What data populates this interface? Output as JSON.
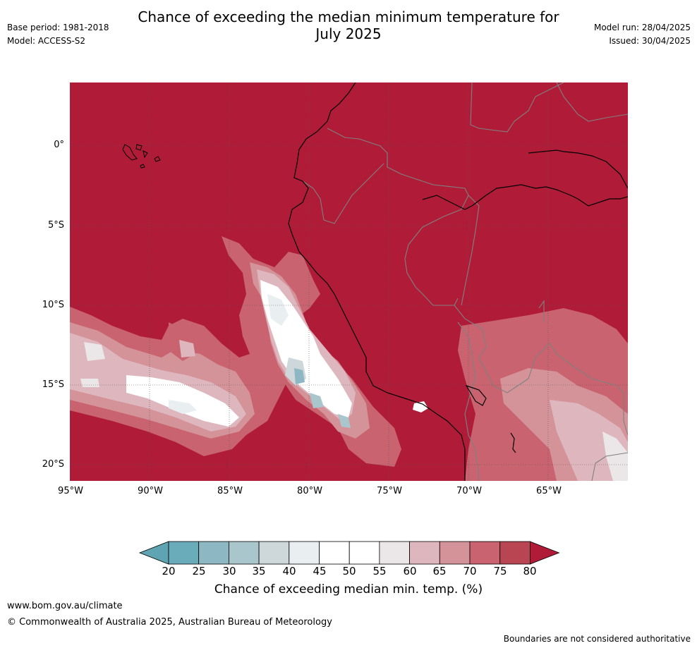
{
  "header": {
    "title_line1": "Chance of exceeding the median minimum temperature for",
    "title_line2": "July 2025",
    "base_period": "Base period: 1981-2018",
    "model": "Model: ACCESS-S2",
    "model_run": "Model run: 28/04/2025",
    "issued": "Issued: 30/04/2025"
  },
  "map": {
    "latitude_labels": [
      "0°",
      "5°S",
      "10°S",
      "15°S",
      "20°S"
    ],
    "longitude_labels": [
      "95°W",
      "90°W",
      "85°W",
      "80°W",
      "75°W",
      "70°W",
      "65°W"
    ],
    "background_category_color": "#b01c38",
    "coastline_color": "#000000",
    "border_color": "#808080"
  },
  "colorbar": {
    "tick_labels": [
      "20",
      "25",
      "30",
      "35",
      "40",
      "45",
      "50",
      "55",
      "60",
      "65",
      "70",
      "75",
      "80"
    ],
    "colors": [
      "#5ea4b3",
      "#6aacb9",
      "#8db7c2",
      "#a9c6cc",
      "#ced8db",
      "#e9eef0",
      "#ffffff",
      "#ffffff",
      "#ebe6e8",
      "#deb6bd",
      "#d49299",
      "#c8636f",
      "#b94552",
      "#b01c38"
    ],
    "title": "Chance of exceeding median min. temp. (%)"
  },
  "footer": {
    "url": "www.bom.gov.au/climate",
    "copyright": "© Commonwealth of Australia 2025, Australian Bureau of Meteorology",
    "disclaimer": "Boundaries are not considered authoritative"
  }
}
